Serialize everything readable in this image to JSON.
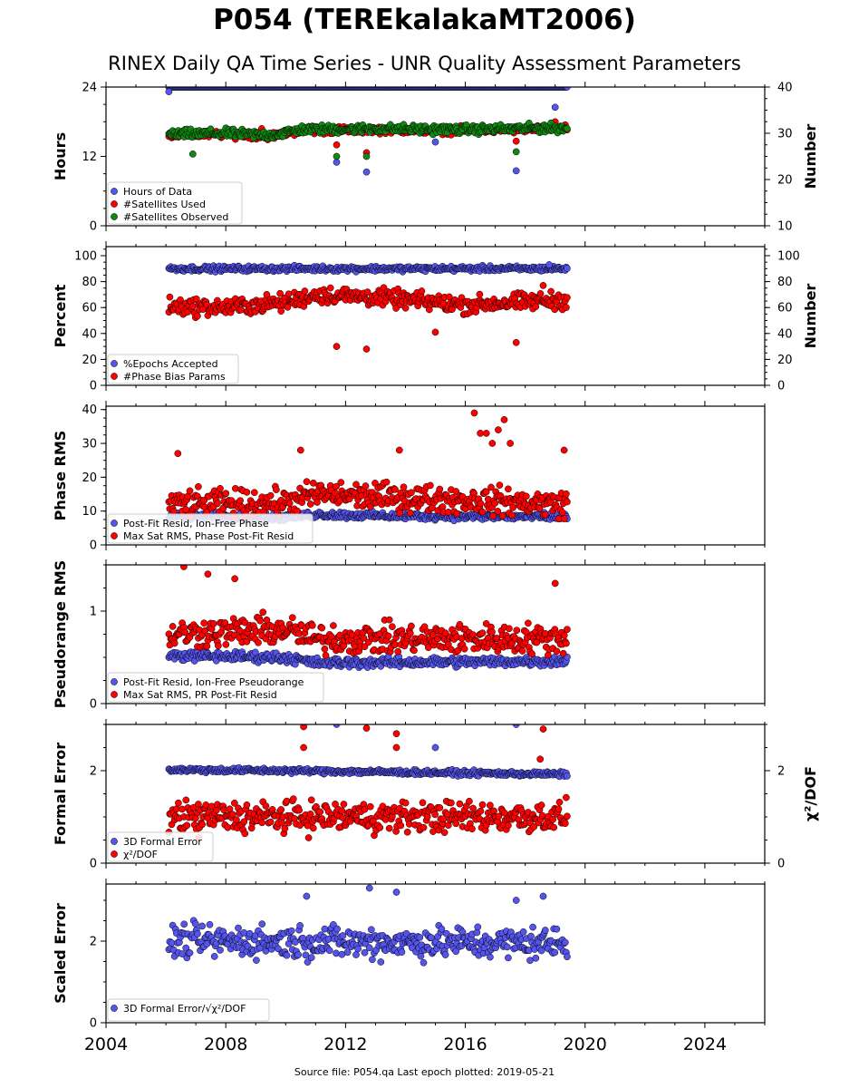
{
  "title": "P054 (TEREkalakaMT2006)",
  "subtitle": "RINEX Daily QA Time Series - UNR Quality Assessment Parameters",
  "footer": "Source file: P054.qa Last epoch plotted: 2019-05-21",
  "colors": {
    "blue": "#5555ee",
    "red": "#ff0000",
    "green": "#118811",
    "edge": "#000000"
  },
  "chart_data": [
    {
      "type": "scatter",
      "ylabel": "Hours",
      "y2label": "Number",
      "xlim": [
        2004,
        2026
      ],
      "ylim": [
        0,
        24
      ],
      "y2lim": [
        10,
        40
      ],
      "yticks": [
        0,
        12,
        24
      ],
      "y2ticks": [
        10,
        20,
        30,
        40
      ],
      "legend_position": "lower-left",
      "series": [
        {
          "name": "Hours of Data",
          "axis": "left",
          "color": "#5555ee",
          "trend": [
            [
              2006.1,
              24
            ],
            [
              2019.4,
              24
            ]
          ],
          "spread": 0.0,
          "outliers": [
            [
              2006.1,
              23.2
            ],
            [
              2011.7,
              11.0
            ],
            [
              2012.7,
              9.3
            ],
            [
              2015.0,
              14.5
            ],
            [
              2017.7,
              9.5
            ],
            [
              2019.0,
              20.5
            ],
            [
              2019.1,
              17.0
            ]
          ]
        },
        {
          "name": "#Satellites Used",
          "axis": "right",
          "color": "#ff0000",
          "trend": [
            [
              2006.1,
              29.6
            ],
            [
              2008.0,
              29.8
            ],
            [
              2009.5,
              29.4
            ],
            [
              2010.5,
              30.6
            ],
            [
              2013.0,
              30.8
            ],
            [
              2016.0,
              30.6
            ],
            [
              2019.4,
              31.0
            ]
          ],
          "spread": 0.6,
          "outliers": [
            [
              2009.2,
              31.0
            ],
            [
              2011.7,
              27.5
            ],
            [
              2012.7,
              25.8
            ],
            [
              2017.7,
              28.3
            ],
            [
              2019.0,
              32.5
            ]
          ]
        },
        {
          "name": "#Satellites Observed",
          "axis": "right",
          "color": "#118811",
          "trend": [
            [
              2006.1,
              29.8
            ],
            [
              2008.0,
              30.0
            ],
            [
              2009.5,
              29.6
            ],
            [
              2010.5,
              30.8
            ],
            [
              2013.0,
              31.0
            ],
            [
              2016.0,
              30.8
            ],
            [
              2019.4,
              31.2
            ]
          ],
          "spread": 0.7,
          "outliers": [
            [
              2006.9,
              25.5
            ],
            [
              2011.7,
              25.0
            ],
            [
              2012.7,
              25.0
            ],
            [
              2017.7,
              26.0
            ]
          ]
        }
      ]
    },
    {
      "type": "scatter",
      "ylabel": "Percent",
      "y2label": "Number",
      "xlim": [
        2004,
        2026
      ],
      "ylim": [
        0,
        107
      ],
      "y2lim": [
        0,
        107
      ],
      "yticks": [
        0,
        20,
        40,
        60,
        80,
        100
      ],
      "y2ticks": [
        0,
        20,
        40,
        60,
        80,
        100
      ],
      "legend_position": "lower-left",
      "series": [
        {
          "name": "%Epochs Accepted",
          "axis": "left",
          "color": "#5555ee",
          "trend": [
            [
              2006.1,
              90
            ],
            [
              2019.4,
              90
            ]
          ],
          "spread": 1.5,
          "outliers": [
            [
              2018.8,
              93
            ]
          ]
        },
        {
          "name": "#Phase Bias Params",
          "axis": "left",
          "color": "#ff0000",
          "trend": [
            [
              2006.1,
              61
            ],
            [
              2008.0,
              60
            ],
            [
              2010.0,
              64
            ],
            [
              2011.0,
              70
            ],
            [
              2013.0,
              68
            ],
            [
              2016.0,
              62
            ],
            [
              2019.4,
              66
            ]
          ],
          "spread": 5.0,
          "outliers": [
            [
              2011.7,
              30
            ],
            [
              2012.7,
              28
            ],
            [
              2015.0,
              41
            ],
            [
              2017.7,
              33
            ],
            [
              2018.6,
              77
            ]
          ]
        }
      ]
    },
    {
      "type": "scatter",
      "ylabel": "Phase RMS",
      "xlim": [
        2004,
        2026
      ],
      "ylim": [
        0,
        41
      ],
      "yticks": [
        0,
        10,
        20,
        30,
        40
      ],
      "legend_position": "lower-left",
      "series": [
        {
          "name": "Post-Fit Resid, Ion-Free Phase",
          "axis": "left",
          "color": "#5555ee",
          "trend": [
            [
              2006.1,
              8.5
            ],
            [
              2010.0,
              8.2
            ],
            [
              2011.0,
              9.0
            ],
            [
              2014.0,
              8.5
            ],
            [
              2019.4,
              8.3
            ]
          ],
          "spread": 0.8,
          "outliers": []
        },
        {
          "name": "Max Sat RMS, Phase Post-Fit Resid",
          "axis": "left",
          "color": "#ff0000",
          "trend": [
            [
              2006.1,
              12
            ],
            [
              2010.0,
              12.5
            ],
            [
              2011.0,
              15
            ],
            [
              2014.0,
              14
            ],
            [
              2019.4,
              12
            ]
          ],
          "spread": 3.0,
          "outliers": [
            [
              2006.4,
              27
            ],
            [
              2010.5,
              28
            ],
            [
              2013.8,
              28
            ],
            [
              2016.3,
              39
            ],
            [
              2016.5,
              33
            ],
            [
              2016.7,
              33
            ],
            [
              2016.9,
              30
            ],
            [
              2017.1,
              34
            ],
            [
              2017.3,
              37
            ],
            [
              2017.5,
              30
            ],
            [
              2019.3,
              28
            ]
          ]
        }
      ]
    },
    {
      "type": "scatter",
      "ylabel": "Pseudorange RMS",
      "xlim": [
        2004,
        2026
      ],
      "ylim": [
        0,
        1.5
      ],
      "yticks": [
        0,
        1
      ],
      "legend_position": "lower-left",
      "series": [
        {
          "name": "Post-Fit Resid, Ion-Free Pseudorange",
          "axis": "left",
          "color": "#5555ee",
          "trend": [
            [
              2006.1,
              0.52
            ],
            [
              2010.0,
              0.5
            ],
            [
              2011.0,
              0.44
            ],
            [
              2019.4,
              0.46
            ]
          ],
          "spread": 0.04,
          "outliers": []
        },
        {
          "name": "Max Sat RMS, PR Post-Fit Resid",
          "axis": "left",
          "color": "#ff0000",
          "trend": [
            [
              2006.1,
              0.75
            ],
            [
              2010.0,
              0.8
            ],
            [
              2011.0,
              0.7
            ],
            [
              2019.4,
              0.7
            ]
          ],
          "spread": 0.12,
          "outliers": [
            [
              2006.6,
              1.48
            ],
            [
              2007.4,
              1.4
            ],
            [
              2008.3,
              1.35
            ],
            [
              2019.0,
              1.3
            ]
          ]
        }
      ]
    },
    {
      "type": "scatter",
      "ylabel": "Formal Error",
      "y2label": "χ²/DOF",
      "xlim": [
        2004,
        2026
      ],
      "ylim": [
        0,
        3.0
      ],
      "y2lim": [
        0,
        3.0
      ],
      "yticks": [
        0,
        2
      ],
      "y2ticks": [
        0,
        2
      ],
      "legend_position": "lower-left",
      "series": [
        {
          "name": "3D Formal Error",
          "axis": "left",
          "color": "#5555ee",
          "trend": [
            [
              2006.1,
              2.02
            ],
            [
              2010.0,
              2.0
            ],
            [
              2019.4,
              1.92
            ]
          ],
          "spread": 0.04,
          "outliers": [
            [
              2011.7,
              3.0
            ],
            [
              2015.0,
              2.5
            ],
            [
              2017.7,
              3.0
            ]
          ]
        },
        {
          "name": "χ²/DOF",
          "axis": "right",
          "color": "#ff0000",
          "trend": [
            [
              2006.1,
              1.0
            ],
            [
              2019.4,
              1.0
            ]
          ],
          "spread": 0.25,
          "outliers": [
            [
              2010.6,
              2.95
            ],
            [
              2010.6,
              2.5
            ],
            [
              2012.7,
              2.92
            ],
            [
              2013.7,
              2.8
            ],
            [
              2013.7,
              2.5
            ],
            [
              2018.6,
              2.9
            ],
            [
              2018.5,
              2.25
            ],
            [
              2007.1,
              0.55
            ]
          ]
        }
      ]
    },
    {
      "type": "scatter",
      "ylabel": "Scaled Error",
      "xlim": [
        2004,
        2026
      ],
      "ylim": [
        0,
        3.4
      ],
      "yticks": [
        0,
        2
      ],
      "xticks": [
        2004,
        2008,
        2012,
        2016,
        2020,
        2024
      ],
      "legend_position": "lower-left",
      "series": [
        {
          "name": "3D Formal Error/√χ²/DOF",
          "axis": "left",
          "color": "#5555ee",
          "trend": [
            [
              2006.1,
              2.0
            ],
            [
              2019.4,
              1.95
            ]
          ],
          "spread": 0.3,
          "outliers": [
            [
              2010.7,
              3.1
            ],
            [
              2012.8,
              3.3
            ],
            [
              2013.7,
              3.2
            ],
            [
              2017.7,
              3.0
            ],
            [
              2018.6,
              3.1
            ]
          ]
        }
      ]
    }
  ]
}
